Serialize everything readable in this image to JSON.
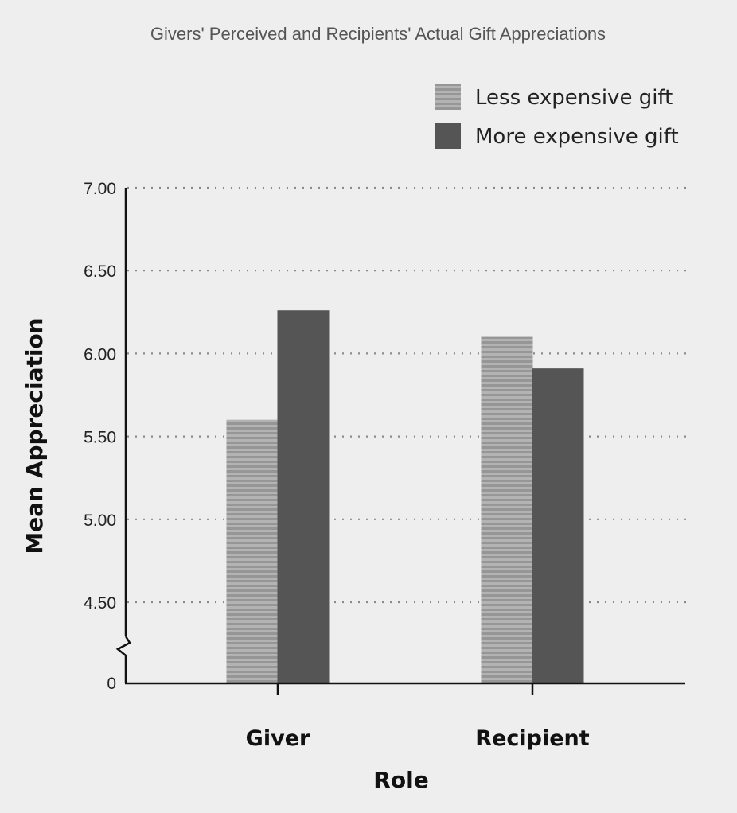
{
  "chart_data": {
    "type": "bar",
    "title": "Givers' Perceived and Recipients' Actual Gift Appreciations",
    "xlabel": "Role",
    "ylabel": "Mean Appreciation",
    "categories": [
      "Giver",
      "Recipient"
    ],
    "series": [
      {
        "name": "Less expensive gift",
        "values": [
          5.6,
          6.1
        ],
        "color": "#a6a6a6",
        "pattern": "horizontal-stripes"
      },
      {
        "name": "More expensive gift",
        "values": [
          6.26,
          5.91
        ],
        "color": "#555555",
        "pattern": "solid"
      }
    ],
    "ylim": [
      4.25,
      7.0
    ],
    "yticks": [
      4.5,
      5.0,
      5.5,
      6.0,
      6.5,
      7.0
    ],
    "ytick_labels": [
      "4.50",
      "5.00",
      "5.50",
      "6.00",
      "6.50",
      "7.00"
    ],
    "y_zero_label": "0",
    "axis_break": true,
    "grid": "horizontal-dotted",
    "legend_position": "top-right"
  }
}
